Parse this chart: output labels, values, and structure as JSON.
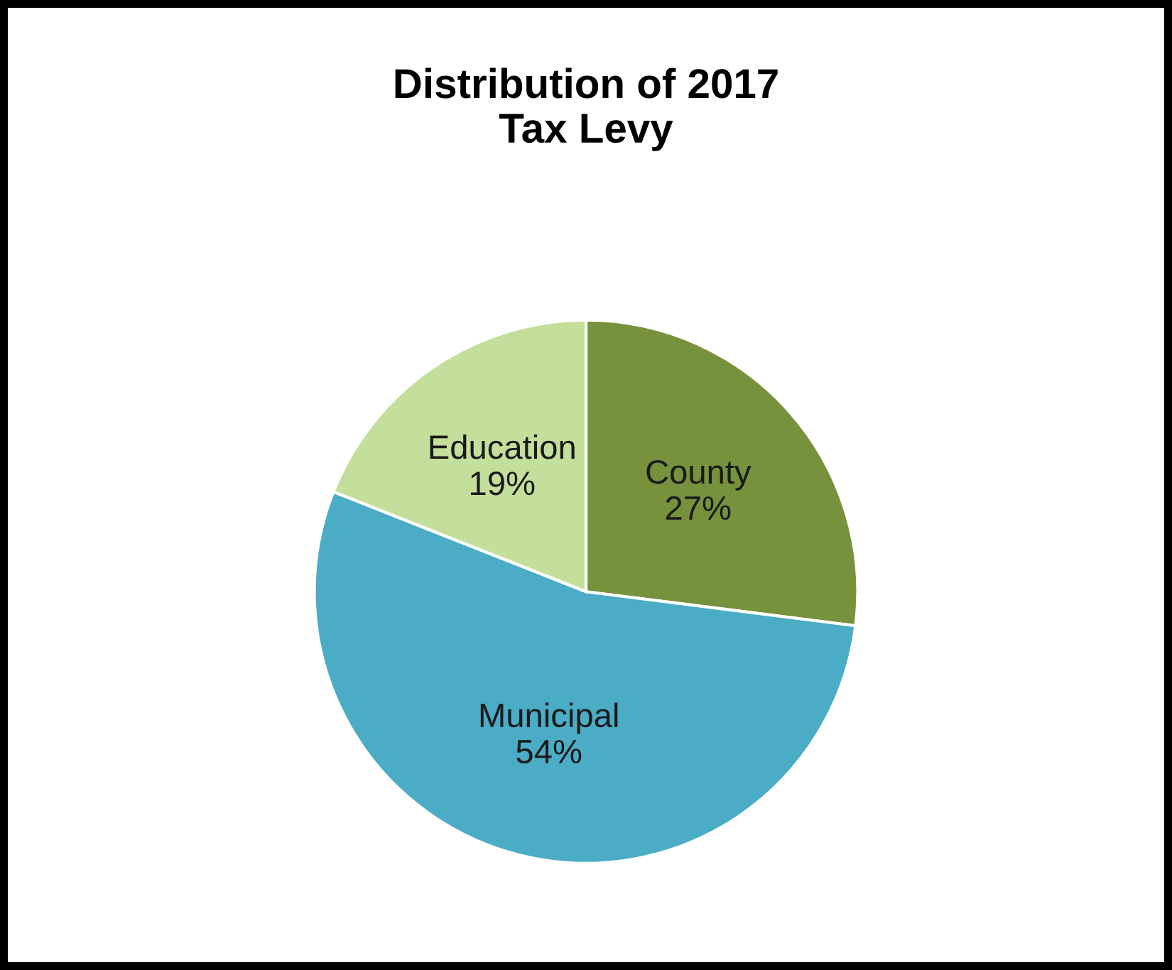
{
  "chart_data": {
    "type": "pie",
    "title": "Distribution of 2017\nTax Levy",
    "categories": [
      "County",
      "Municipal",
      "Education"
    ],
    "values": [
      27,
      54,
      19
    ],
    "value_labels": [
      "27%",
      "54%",
      "19%"
    ],
    "colors": [
      "#76923c",
      "#4bacc6",
      "#c4df9b"
    ],
    "legend": false
  }
}
